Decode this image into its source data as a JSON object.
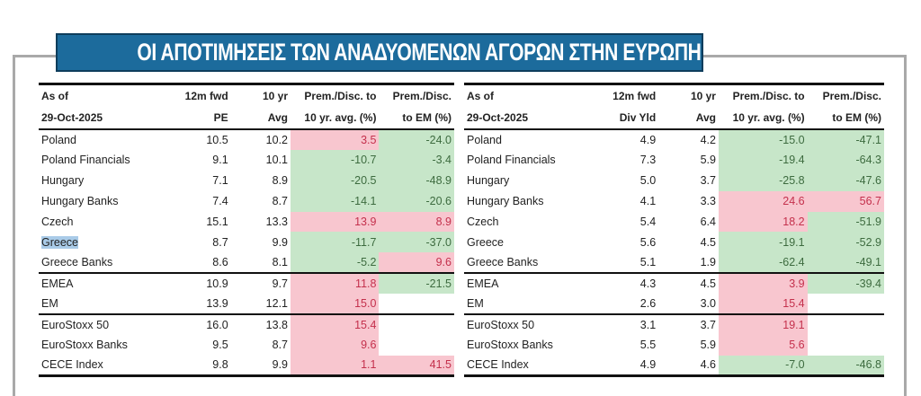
{
  "title": "ΟΙ ΑΠΟΤΙΜΗΣΕΙΣ ΤΩΝ ΑΝΑΔΥΟΜΕΝΩΝ ΑΓΟΡΩΝ ΣΤΗΝ ΕΥΡΩΠΗ",
  "colors": {
    "premium_bg": "#f8c6cf",
    "premium_text": "#c4304c",
    "discount_bg": "#c7e6c9",
    "discount_text": "#3d6b3f",
    "banner": "#1c6b9c"
  },
  "highlighted_text": "Greece",
  "tables": [
    {
      "headers": [
        [
          "As of",
          "12m fwd",
          "10 yr",
          "Prem./Disc. to",
          "Prem./Disc."
        ],
        [
          "29-Oct-2025",
          "PE",
          "Avg",
          "10 yr. avg. (%)",
          "to EM (%)"
        ]
      ],
      "rows": [
        {
          "name": "Poland",
          "v": [
            "10.5",
            "10.2",
            "3.5",
            "-24.0"
          ],
          "c": [
            "",
            "",
            "pos",
            "neg"
          ]
        },
        {
          "name": "Poland Financials",
          "v": [
            "9.1",
            "10.1",
            "-10.7",
            "-3.4"
          ],
          "c": [
            "",
            "",
            "neg",
            "neg"
          ]
        },
        {
          "name": "Hungary",
          "v": [
            "7.1",
            "8.9",
            "-20.5",
            "-48.9"
          ],
          "c": [
            "",
            "",
            "neg",
            "neg"
          ]
        },
        {
          "name": "Hungary Banks",
          "v": [
            "7.4",
            "8.7",
            "-14.1",
            "-20.6"
          ],
          "c": [
            "",
            "",
            "neg",
            "neg"
          ]
        },
        {
          "name": "Czech",
          "v": [
            "15.1",
            "13.3",
            "13.9",
            "8.9"
          ],
          "c": [
            "",
            "",
            "pos",
            "pos"
          ]
        },
        {
          "name": "Greece",
          "v": [
            "8.7",
            "9.9",
            "-11.7",
            "-37.0"
          ],
          "c": [
            "",
            "",
            "neg",
            "neg"
          ]
        },
        {
          "name": "Greece Banks",
          "v": [
            "8.6",
            "8.1",
            "-5.2",
            "9.6"
          ],
          "c": [
            "",
            "",
            "neg",
            "pos"
          ]
        },
        {
          "name": "EMEA",
          "v": [
            "10.9",
            "9.7",
            "11.8",
            "-21.5"
          ],
          "c": [
            "",
            "",
            "pos",
            "neg"
          ],
          "sep": true
        },
        {
          "name": "EM",
          "v": [
            "13.9",
            "12.1",
            "15.0",
            ""
          ],
          "c": [
            "",
            "",
            "pos",
            ""
          ]
        },
        {
          "name": "EuroStoxx 50",
          "v": [
            "16.0",
            "13.8",
            "15.4",
            ""
          ],
          "c": [
            "",
            "",
            "pos",
            ""
          ],
          "sep": true
        },
        {
          "name": "EuroStoxx Banks",
          "v": [
            "9.5",
            "8.7",
            "9.6",
            ""
          ],
          "c": [
            "",
            "",
            "pos",
            ""
          ]
        },
        {
          "name": "CECE Index",
          "v": [
            "9.8",
            "9.9",
            "1.1",
            "41.5"
          ],
          "c": [
            "",
            "",
            "pos",
            "pos"
          ]
        }
      ]
    },
    {
      "headers": [
        [
          "As of",
          "12m fwd",
          "10 yr",
          "Prem./Disc. to",
          "Prem./Disc."
        ],
        [
          "29-Oct-2025",
          "Div Yld",
          "Avg",
          "10 yr. avg. (%)",
          "to EM (%)"
        ]
      ],
      "rows": [
        {
          "name": "Poland",
          "v": [
            "4.9",
            "4.2",
            "-15.0",
            "-47.1"
          ],
          "c": [
            "",
            "",
            "neg",
            "neg"
          ]
        },
        {
          "name": "Poland Financials",
          "v": [
            "7.3",
            "5.9",
            "-19.4",
            "-64.3"
          ],
          "c": [
            "",
            "",
            "neg",
            "neg"
          ]
        },
        {
          "name": "Hungary",
          "v": [
            "5.0",
            "3.7",
            "-25.8",
            "-47.6"
          ],
          "c": [
            "",
            "",
            "neg",
            "neg"
          ]
        },
        {
          "name": "Hungary Banks",
          "v": [
            "4.1",
            "3.3",
            "24.6",
            "56.7"
          ],
          "c": [
            "",
            "",
            "pos",
            "pos"
          ]
        },
        {
          "name": "Czech",
          "v": [
            "5.4",
            "6.4",
            "18.2",
            "-51.9"
          ],
          "c": [
            "",
            "",
            "pos",
            "neg"
          ]
        },
        {
          "name": "Greece",
          "v": [
            "5.6",
            "4.5",
            "-19.1",
            "-52.9"
          ],
          "c": [
            "",
            "",
            "neg",
            "neg"
          ]
        },
        {
          "name": "Greece Banks",
          "v": [
            "5.1",
            "1.9",
            "-62.4",
            "-49.1"
          ],
          "c": [
            "",
            "",
            "neg",
            "neg"
          ]
        },
        {
          "name": "EMEA",
          "v": [
            "4.3",
            "4.5",
            "3.9",
            "-39.4"
          ],
          "c": [
            "",
            "",
            "pos",
            "neg"
          ],
          "sep": true
        },
        {
          "name": "EM",
          "v": [
            "2.6",
            "3.0",
            "15.4",
            ""
          ],
          "c": [
            "",
            "",
            "pos",
            ""
          ]
        },
        {
          "name": "EuroStoxx 50",
          "v": [
            "3.1",
            "3.7",
            "19.1",
            ""
          ],
          "c": [
            "",
            "",
            "pos",
            ""
          ],
          "sep": true
        },
        {
          "name": "EuroStoxx Banks",
          "v": [
            "5.5",
            "5.9",
            "5.6",
            ""
          ],
          "c": [
            "",
            "",
            "pos",
            ""
          ]
        },
        {
          "name": "CECE Index",
          "v": [
            "4.9",
            "4.6",
            "-7.0",
            "-46.8"
          ],
          "c": [
            "",
            "",
            "neg",
            "neg"
          ]
        }
      ]
    }
  ]
}
